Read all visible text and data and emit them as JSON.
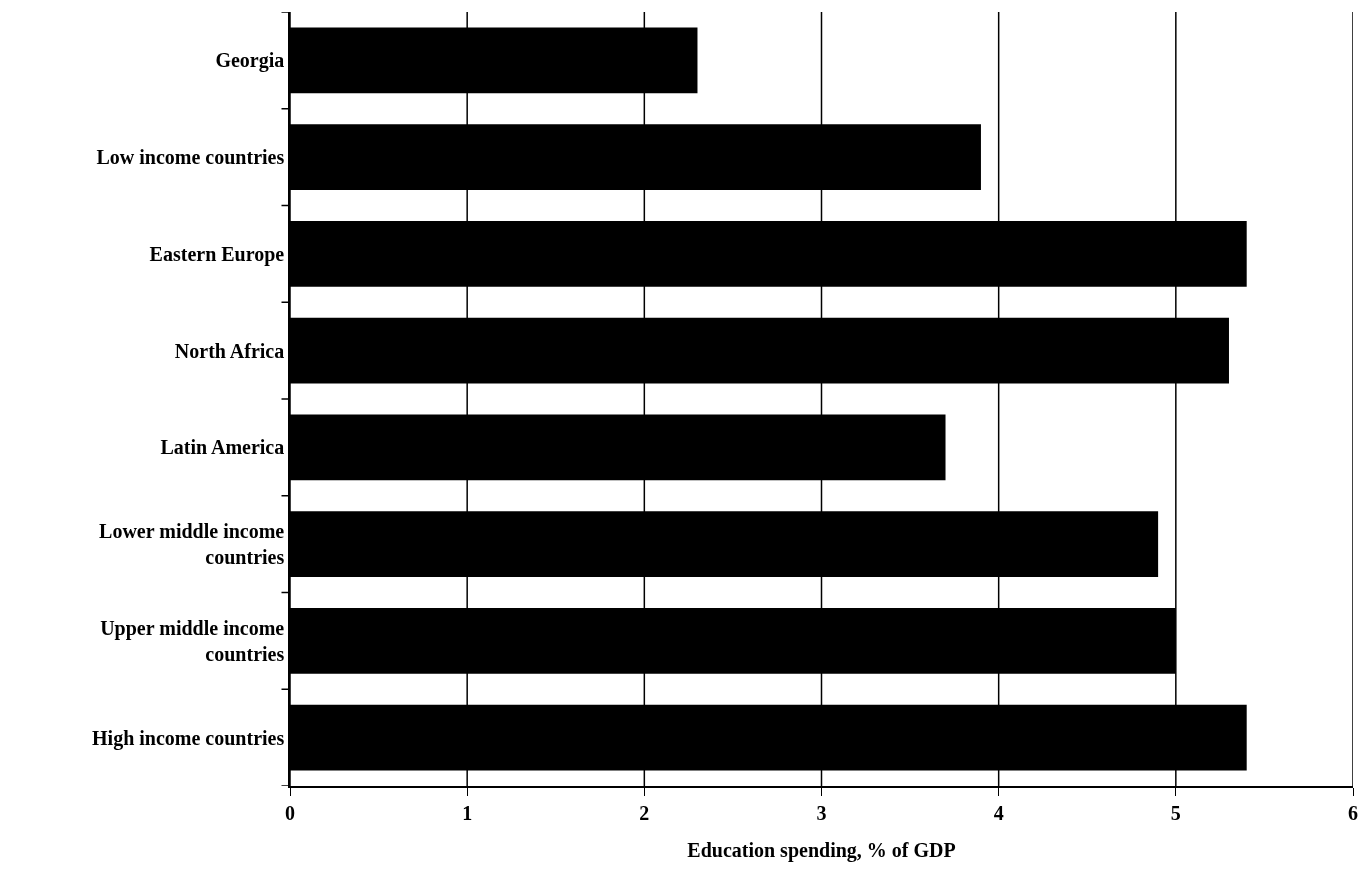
{
  "chart_data": {
    "type": "bar",
    "orientation": "horizontal",
    "xlabel": "Education spending, % of GDP",
    "categories": [
      "Georgia",
      "Low income countries",
      "Eastern Europe",
      "North Africa",
      "Latin America",
      "Lower middle income countries",
      "Upper middle income countries",
      "High income countries"
    ],
    "values": [
      2.3,
      3.9,
      5.4,
      5.3,
      3.7,
      4.9,
      5.0,
      5.4
    ],
    "color": "#000000",
    "xlim": [
      0,
      6
    ],
    "xticks": [
      0,
      1,
      2,
      3,
      4,
      5,
      6
    ],
    "grid": "x"
  }
}
